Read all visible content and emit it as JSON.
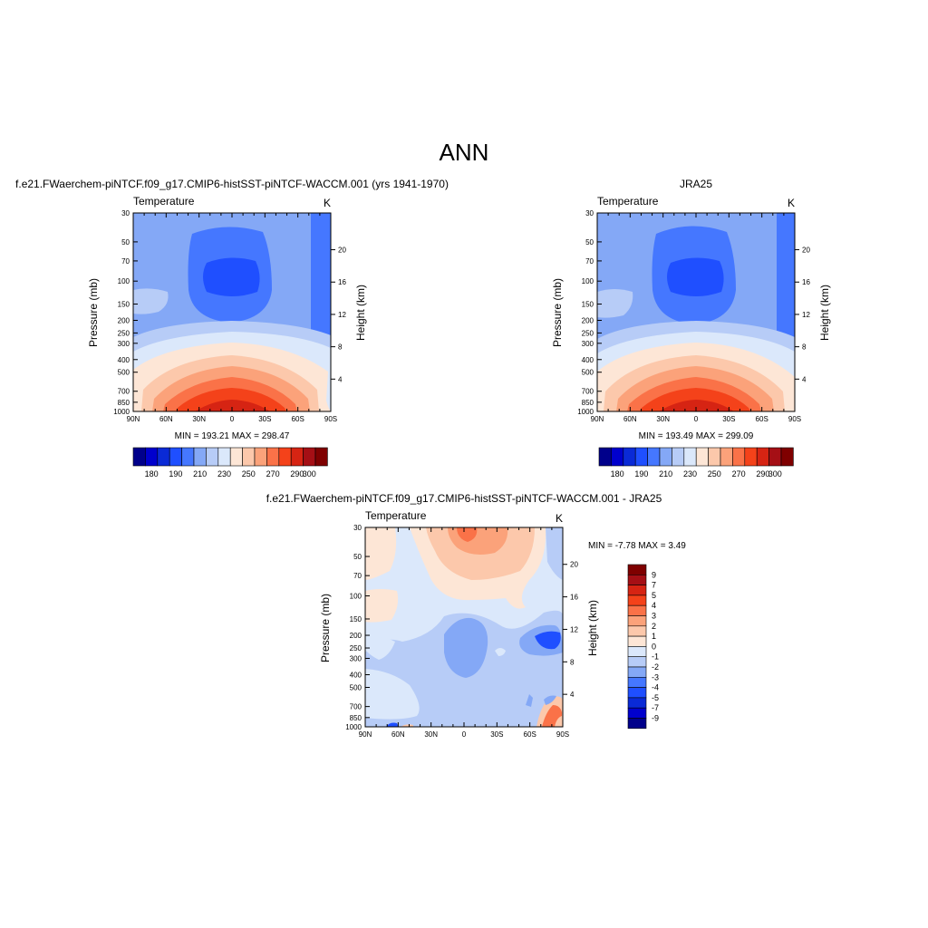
{
  "page_title": "ANN",
  "chart_data": [
    {
      "type": "contour",
      "id": "model",
      "title": "f.e21.FWaerchem-piNTCF.f09_g17.CMIP6-histSST-piNTCF-WACCM.001 (yrs 1941-1970)",
      "variable": "Temperature",
      "units": "K",
      "xlabel": "",
      "ylabel": "Pressure (mb)",
      "y2label": "Height (km)",
      "x_ticks": [
        "90N",
        "60N",
        "30N",
        "0",
        "30S",
        "60S",
        "90S"
      ],
      "y_ticks": [
        "30",
        "50",
        "70",
        "100",
        "150",
        "200",
        "250",
        "300",
        "400",
        "500",
        "700",
        "850",
        "1000"
      ],
      "y2_ticks": [
        "20",
        "16",
        "12",
        "8",
        "4"
      ],
      "yscale": "log",
      "ylim": [
        30,
        1000
      ],
      "stats": "MIN = 193.21  MAX = 298.47",
      "colorbar": {
        "orientation": "horizontal",
        "tick_labels": [
          "180",
          "190",
          "210",
          "230",
          "250",
          "270",
          "290",
          "300"
        ],
        "colors": [
          "#00008b",
          "#0000cd",
          "#0a2ad6",
          "#1f4fff",
          "#4577ff",
          "#84a8f6",
          "#b7ccf7",
          "#dbe8fb",
          "#fde6d6",
          "#fcc8ab",
          "#fba27a",
          "#fa7248",
          "#f4421a",
          "#d62413",
          "#a50f15",
          "#7f0000"
        ]
      }
    },
    {
      "type": "contour",
      "id": "obs",
      "title": "JRA25",
      "variable": "Temperature",
      "units": "K",
      "xlabel": "",
      "ylabel": "Pressure (mb)",
      "y2label": "Height (km)",
      "x_ticks": [
        "90N",
        "60N",
        "30N",
        "0",
        "30S",
        "60S",
        "90S"
      ],
      "y_ticks": [
        "30",
        "50",
        "70",
        "100",
        "150",
        "200",
        "250",
        "300",
        "400",
        "500",
        "700",
        "850",
        "1000"
      ],
      "y2_ticks": [
        "20",
        "16",
        "12",
        "8",
        "4"
      ],
      "yscale": "log",
      "ylim": [
        30,
        1000
      ],
      "stats": "MIN = 193.49  MAX = 299.09",
      "colorbar": {
        "orientation": "horizontal",
        "tick_labels": [
          "180",
          "190",
          "210",
          "230",
          "250",
          "270",
          "290",
          "300"
        ],
        "colors": [
          "#00008b",
          "#0000cd",
          "#0a2ad6",
          "#1f4fff",
          "#4577ff",
          "#84a8f6",
          "#b7ccf7",
          "#dbe8fb",
          "#fde6d6",
          "#fcc8ab",
          "#fba27a",
          "#fa7248",
          "#f4421a",
          "#d62413",
          "#a50f15",
          "#7f0000"
        ]
      }
    },
    {
      "type": "contour",
      "id": "diff",
      "title": "f.e21.FWaerchem-piNTCF.f09_g17.CMIP6-histSST-piNTCF-WACCM.001 - JRA25",
      "variable": "Temperature",
      "units": "K",
      "xlabel": "",
      "ylabel": "Pressure (mb)",
      "y2label": "Height (km)",
      "x_ticks": [
        "90N",
        "60N",
        "30N",
        "0",
        "30S",
        "60S",
        "90S"
      ],
      "y_ticks": [
        "30",
        "50",
        "70",
        "100",
        "150",
        "200",
        "250",
        "300",
        "400",
        "500",
        "700",
        "850",
        "1000"
      ],
      "y2_ticks": [
        "20",
        "16",
        "12",
        "8",
        "4"
      ],
      "yscale": "log",
      "ylim": [
        30,
        1000
      ],
      "stats": "MIN =  -7.78  MAX =   3.49",
      "colorbar": {
        "orientation": "vertical",
        "tick_labels": [
          "9",
          "7",
          "5",
          "4",
          "3",
          "2",
          "1",
          "0",
          "-1",
          "-2",
          "-3",
          "-4",
          "-5",
          "-7",
          "-9"
        ],
        "colors": [
          "#7f0000",
          "#a50f15",
          "#d62413",
          "#f4421a",
          "#fa7248",
          "#fba27a",
          "#fcc8ab",
          "#fde6d6",
          "#dbe8fb",
          "#b7ccf7",
          "#84a8f6",
          "#4577ff",
          "#1f4fff",
          "#0a2ad6",
          "#0000cd",
          "#00008b"
        ]
      }
    }
  ]
}
